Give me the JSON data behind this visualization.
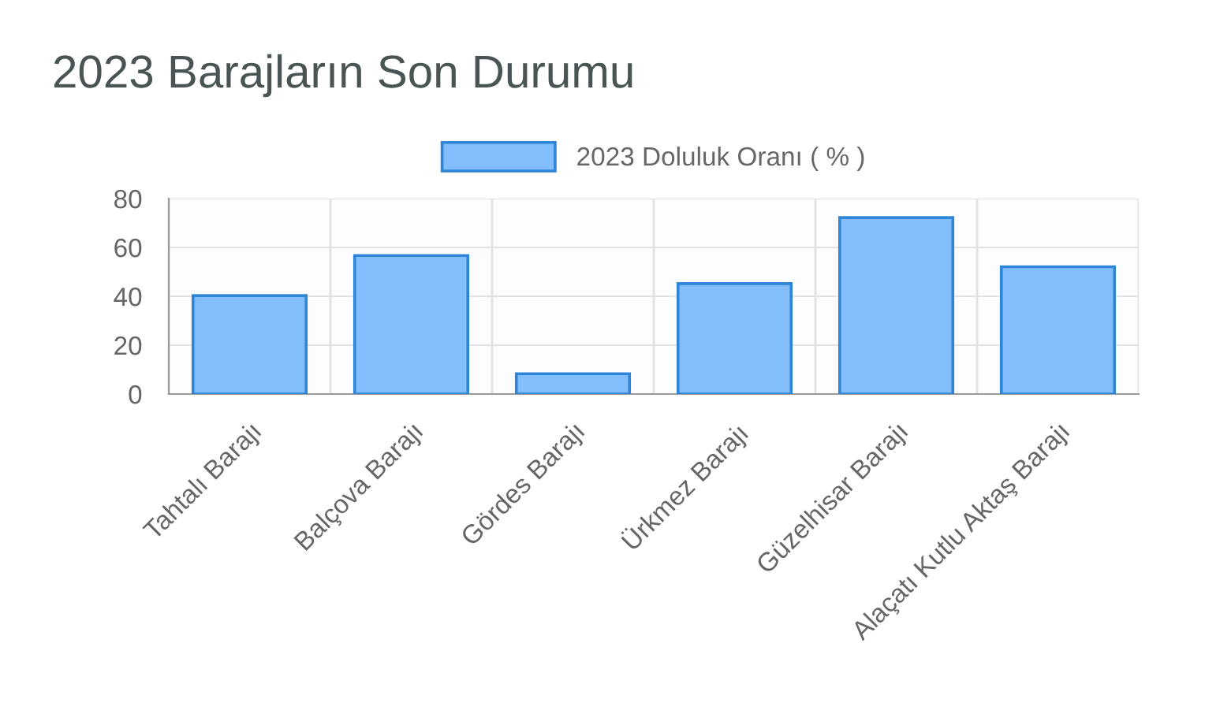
{
  "chart_data": {
    "type": "bar",
    "title": "2023 Barajların Son Durumu",
    "categories": [
      "Tahtalı Barajı",
      "Balçova Barajı",
      "Gördes Barajı",
      "Ürkmez Barajı",
      "Güzelhisar Barajı",
      "Alaçatı Kutlu Aktaş Barajı"
    ],
    "series": [
      {
        "name": "2023 Doluluk Oranı ( % )",
        "color": "#82bdfc",
        "values": [
          40.3,
          56.7,
          8.3,
          45.2,
          72.2,
          52.1
        ]
      }
    ],
    "ylim": [
      0,
      80
    ],
    "yticks": [
      0,
      20,
      40,
      60,
      80
    ],
    "grid": true,
    "legend": "top"
  }
}
